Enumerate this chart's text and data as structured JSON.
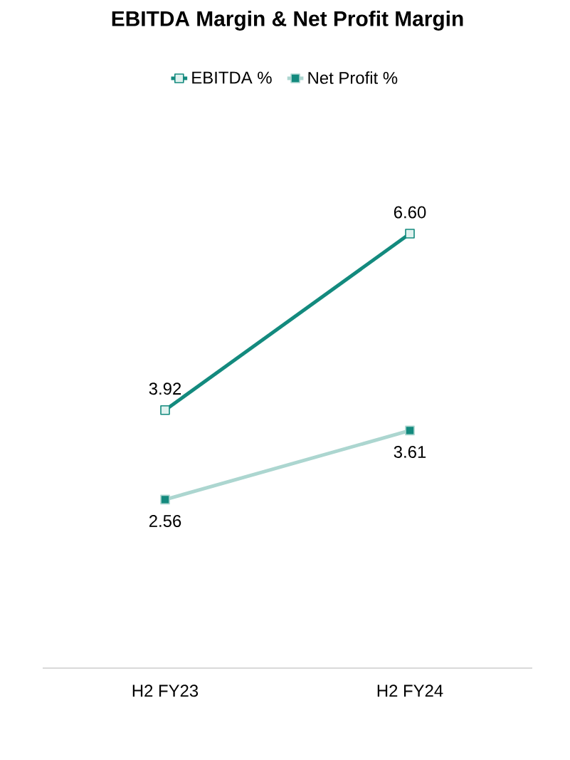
{
  "chart_data": {
    "type": "line",
    "title": "EBITDA Margin & Net Profit Margin",
    "categories": [
      "H2 FY23",
      "H2 FY24"
    ],
    "series": [
      {
        "name": "EBITDA %",
        "color": "#138a7e",
        "values": [
          3.92,
          6.6
        ],
        "value_labels": [
          "3.92",
          "6.60"
        ]
      },
      {
        "name": "Net Profit %",
        "color": "#acd6d0",
        "values": [
          2.56,
          3.61
        ],
        "value_labels": [
          "2.56",
          "3.61"
        ]
      }
    ],
    "legend": "top",
    "marker": "square"
  }
}
